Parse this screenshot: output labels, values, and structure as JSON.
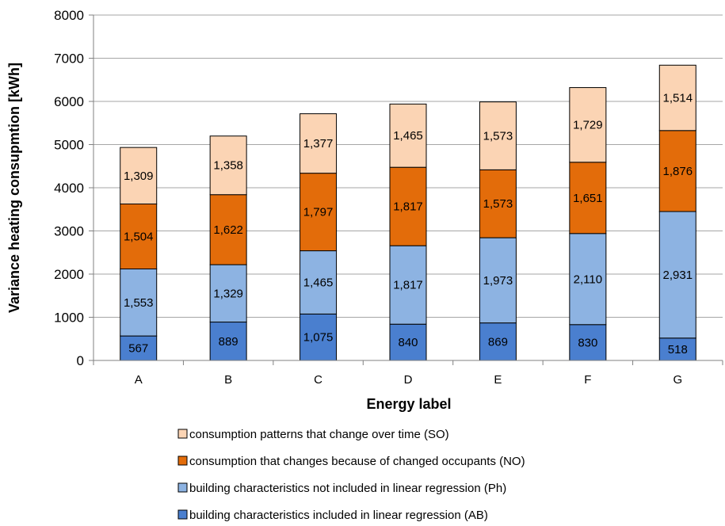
{
  "chart_data": {
    "type": "bar",
    "stacked": true,
    "title": "",
    "xlabel": "Energy label",
    "ylabel": "Variance heating consupmtion [kWh]",
    "ylim": [
      0,
      8000
    ],
    "yticks": [
      0,
      1000,
      2000,
      3000,
      4000,
      5000,
      6000,
      7000,
      8000
    ],
    "ytick_labels": [
      "0",
      "1000",
      "2000",
      "3000",
      "4000",
      "5000",
      "6000",
      "7000",
      "8000"
    ],
    "grid": true,
    "legend_position": "bottom",
    "categories": [
      "A",
      "B",
      "C",
      "D",
      "E",
      "F",
      "G"
    ],
    "series": [
      {
        "name": "building characteristics included in linear regression (AB)",
        "color": "#4a7fcf",
        "values": [
          567,
          889,
          1075,
          840,
          869,
          830,
          518
        ],
        "labels": [
          "567",
          "889",
          "1,075",
          "840",
          "869",
          "830",
          "518"
        ]
      },
      {
        "name": "building characteristics not included in linear regression (Ph)",
        "color": "#8db3e2",
        "values": [
          1553,
          1329,
          1465,
          1817,
          1973,
          2110,
          2931
        ],
        "labels": [
          "1,553",
          "1,329",
          "1,465",
          "1,817",
          "1,973",
          "2,110",
          "2,931"
        ]
      },
      {
        "name": "consumption that changes because of changed occupants (NO)",
        "color": "#e36c0a",
        "values": [
          1504,
          1622,
          1797,
          1817,
          1573,
          1651,
          1876
        ],
        "labels": [
          "1,504",
          "1,622",
          "1,797",
          "1,817",
          "1,573",
          "1,651",
          "1,876"
        ]
      },
      {
        "name": "consumption patterns that change over time (SO)",
        "color": "#fbd4b4",
        "values": [
          1309,
          1358,
          1377,
          1465,
          1573,
          1729,
          1514
        ],
        "labels": [
          "1,309",
          "1,358",
          "1,377",
          "1,465",
          "1,573",
          "1,729",
          "1,514"
        ]
      }
    ]
  }
}
